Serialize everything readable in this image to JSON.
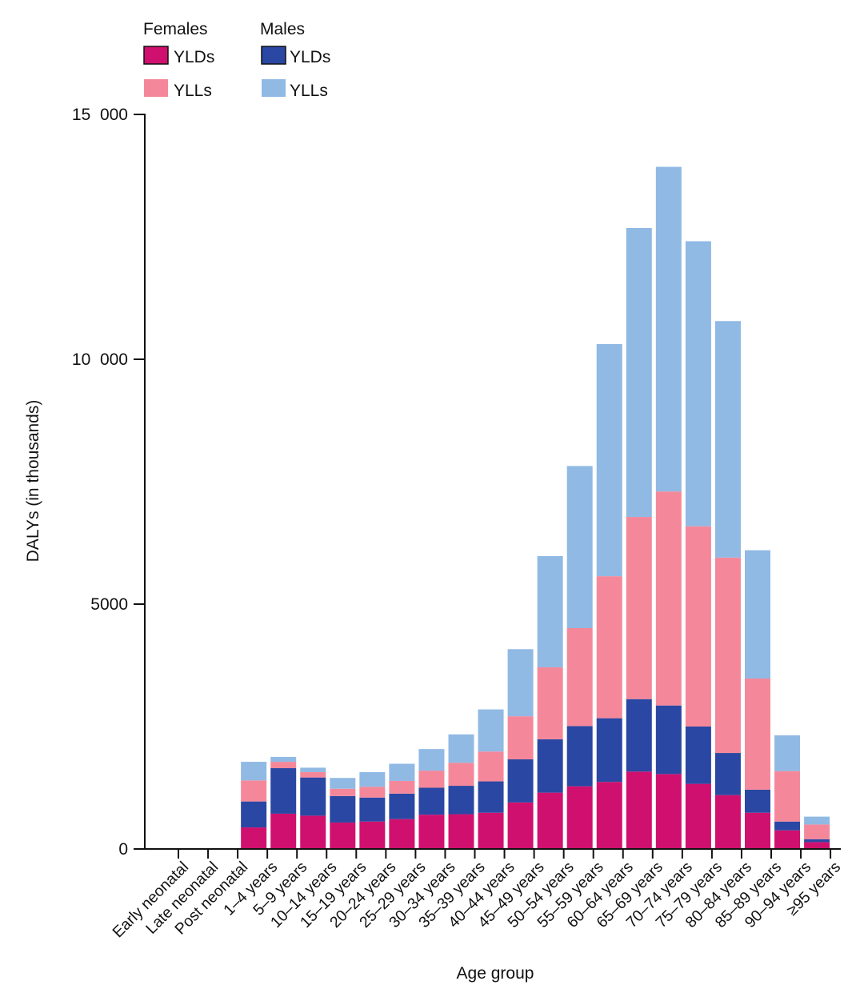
{
  "chart_data": {
    "type": "bar",
    "stacked": true,
    "xlabel": "Age group",
    "ylabel": "DALYs (in thousands)",
    "ylim": [
      0,
      15000
    ],
    "yticks": [
      {
        "value": 0,
        "label": "0"
      },
      {
        "value": 5000,
        "label": "5000"
      },
      {
        "value": 10000,
        "label": "10  000"
      },
      {
        "value": 15000,
        "label": "15  000"
      }
    ],
    "categories": [
      "Early neonatal",
      "Late neonatal",
      "Post neonatal",
      "1–4 years",
      "5–9 years",
      "10–14 years",
      "15–19 years",
      "20–24 years",
      "25–29 years",
      "30–34 years",
      "35–39 years",
      "40–44 years",
      "45–49 years",
      "50–54 years",
      "55–59 years",
      "60–64 years",
      "65–69 years",
      "70–74 years",
      "75–79 years",
      "80–84 years",
      "85–89 years",
      "90–94 years",
      "≥95 years"
    ],
    "legend": {
      "placement": "top-left",
      "groups": [
        {
          "title": "Females",
          "entries": [
            {
              "label": "YLDs",
              "color": "#d0106e"
            },
            {
              "label": "YLLs",
              "color": "#f4889a"
            }
          ]
        },
        {
          "title": "Males",
          "entries": [
            {
              "label": "YLDs",
              "color": "#2a47a3"
            },
            {
              "label": "YLLs",
              "color": "#90b9e4"
            }
          ]
        }
      ]
    },
    "series": [
      {
        "group": "Females",
        "name": "YLDs",
        "color": "#d0106e",
        "values": [
          0,
          0,
          0,
          440,
          720,
          680,
          540,
          560,
          610,
          700,
          710,
          740,
          950,
          1150,
          1280,
          1370,
          1580,
          1530,
          1330,
          1100,
          740,
          380,
          140
        ]
      },
      {
        "group": "Males",
        "name": "YLDs",
        "color": "#2a47a3",
        "values": [
          0,
          0,
          0,
          530,
          930,
          780,
          540,
          490,
          520,
          550,
          580,
          640,
          880,
          1090,
          1230,
          1300,
          1480,
          1400,
          1170,
          860,
          470,
          180,
          60
        ]
      },
      {
        "group": "Females",
        "name": "YLLs",
        "color": "#f4889a",
        "values": [
          0,
          0,
          0,
          430,
          130,
          110,
          150,
          220,
          260,
          350,
          470,
          610,
          880,
          1470,
          2000,
          2900,
          3720,
          4370,
          4090,
          3990,
          2270,
          1030,
          300
        ]
      },
      {
        "group": "Males",
        "name": "YLLs",
        "color": "#90b9e4",
        "values": [
          0,
          0,
          0,
          380,
          100,
          90,
          220,
          300,
          350,
          440,
          580,
          860,
          1370,
          2270,
          3310,
          4740,
          5900,
          6630,
          5820,
          4830,
          2620,
          730,
          160
        ]
      }
    ]
  }
}
